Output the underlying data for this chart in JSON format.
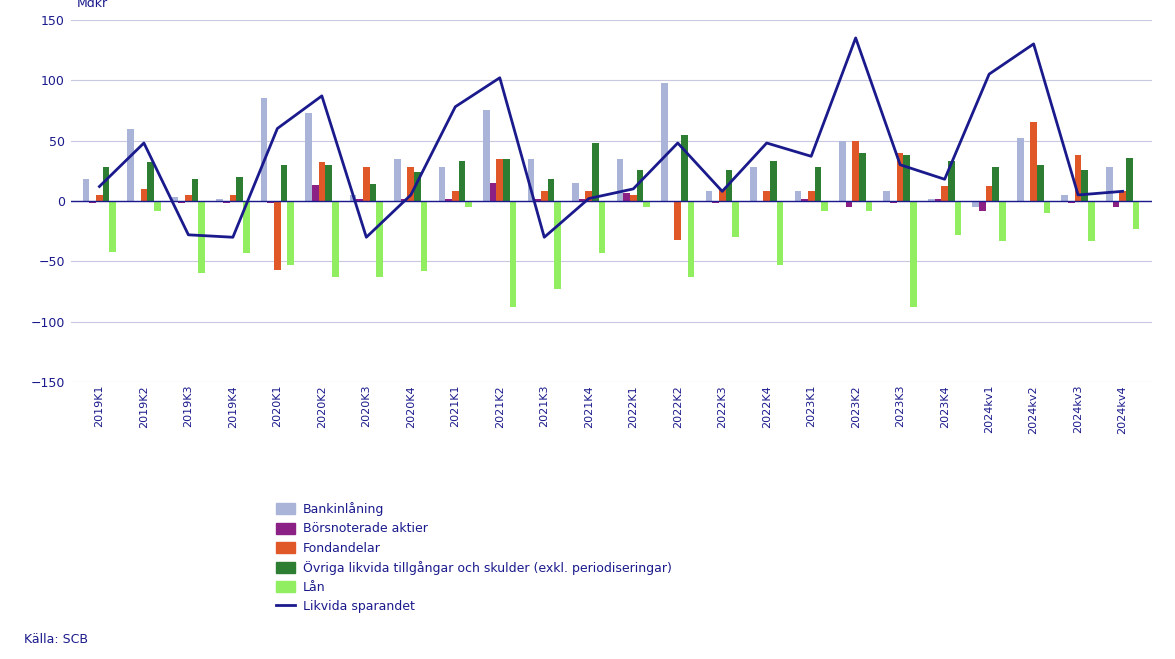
{
  "categories": [
    "2019K1",
    "2019K2",
    "2019K3",
    "2019K4",
    "2020K1",
    "2020K2",
    "2020K3",
    "2020K4",
    "2021K1",
    "2021K2",
    "2021K3",
    "2021K4",
    "2022K1",
    "2022K2",
    "2022K3",
    "2022K4",
    "2023K1",
    "2023K2",
    "2023K3",
    "2023K4",
    "2024kv1",
    "2024kv2",
    "2024kv3",
    "2024kv4"
  ],
  "bankinlaning": [
    18,
    60,
    3,
    2,
    85,
    73,
    5,
    35,
    28,
    75,
    35,
    15,
    35,
    98,
    8,
    28,
    8,
    50,
    8,
    2,
    -5,
    52,
    5,
    28
  ],
  "borsnoterade_aktier": [
    -2,
    0,
    -2,
    -2,
    -2,
    13,
    2,
    2,
    2,
    15,
    2,
    2,
    7,
    0,
    -2,
    0,
    2,
    -5,
    -2,
    2,
    -8,
    0,
    -2,
    -5
  ],
  "fondandelar": [
    5,
    10,
    5,
    5,
    -57,
    32,
    28,
    28,
    8,
    35,
    8,
    8,
    5,
    -32,
    10,
    8,
    8,
    50,
    40,
    12,
    12,
    65,
    38,
    8
  ],
  "ovriga": [
    28,
    32,
    18,
    20,
    30,
    30,
    14,
    24,
    33,
    35,
    18,
    48,
    26,
    55,
    26,
    33,
    28,
    40,
    38,
    33,
    28,
    30,
    26,
    36
  ],
  "lan": [
    -42,
    -8,
    -60,
    -43,
    -53,
    -63,
    -63,
    -58,
    -5,
    -88,
    -73,
    -43,
    -5,
    -63,
    -30,
    -53,
    -8,
    -8,
    -88,
    -28,
    -33,
    -10,
    -33,
    -23
  ],
  "likvida_sparandet": [
    12,
    48,
    -28,
    -30,
    60,
    87,
    -30,
    5,
    78,
    102,
    -30,
    2,
    10,
    48,
    8,
    48,
    37,
    135,
    30,
    18,
    105,
    130,
    5,
    8
  ],
  "color_bankinlaning": "#aab4d8",
  "color_borsnoterade": "#8b2085",
  "color_fondandelar": "#e05828",
  "color_ovriga": "#2d7d32",
  "color_lan": "#90ee60",
  "color_line": "#1a1a8c",
  "ylim": [
    -150,
    150
  ],
  "yticks": [
    -150,
    -100,
    -50,
    0,
    50,
    100,
    150
  ],
  "ylabel": "Mdkr",
  "source": "Källa: SCB",
  "legend_bankinlaning": "Bankinlåning",
  "legend_borsnoterade": "Börsnoterade aktier",
  "legend_fondandelar": "Fondandelar",
  "legend_ovriga": "Övriga likvida tillgångar och skulder (exkl. periodiseringar)",
  "legend_lan": "Lån",
  "legend_line": "Likvida sparandet",
  "plot_bg": "#f5f5fa"
}
